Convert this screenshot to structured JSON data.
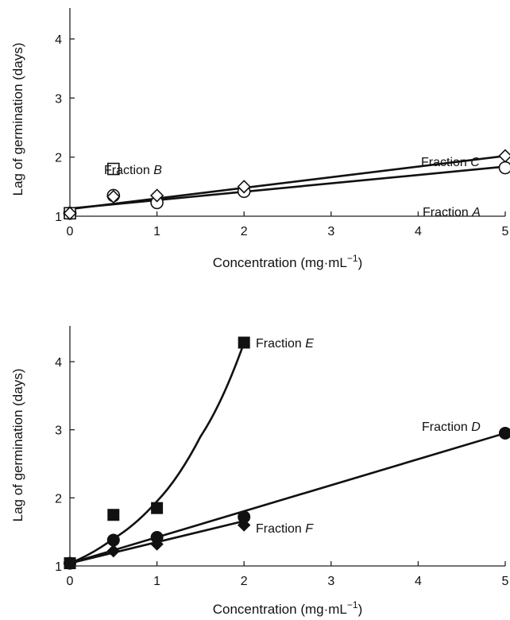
{
  "chart_data": [
    {
      "type": "scatter",
      "xlabel": "Concentration (mg·mL",
      "xlabel_sup": "−1",
      "xlabel_close": ")",
      "ylabel": "Lag of germination (days)",
      "xlim": [
        0,
        5
      ],
      "ylim": [
        1,
        4.5
      ],
      "xticks": [
        "0",
        "1",
        "2",
        "3",
        "4",
        "5"
      ],
      "yticks": [
        "1",
        "2",
        "3",
        "4"
      ],
      "x_positions": [
        0,
        0.5,
        1,
        2,
        5
      ],
      "grid": false,
      "series": [
        {
          "name": "Fraction A",
          "label": "Fraction ",
          "label_letter": "A",
          "marker": "open-circle",
          "points": [
            [
              0,
              1.05
            ],
            [
              0.5,
              1.35
            ],
            [
              1,
              1.23
            ],
            [
              2,
              1.42
            ],
            [
              5,
              1.82
            ]
          ],
          "fit": [
            [
              0,
              1.13
            ],
            [
              5,
              1.84
            ]
          ]
        },
        {
          "name": "Fraction B",
          "label": "Fraction ",
          "label_letter": "B",
          "marker": "open-square",
          "points": [
            [
              0,
              1.05
            ],
            [
              0.5,
              1.8
            ]
          ]
        },
        {
          "name": "Fraction C",
          "label": "Fraction ",
          "label_letter": "C",
          "marker": "open-diamond",
          "points": [
            [
              0,
              1.05
            ],
            [
              0.5,
              1.33
            ],
            [
              1,
              1.35
            ],
            [
              2,
              1.5
            ],
            [
              5,
              2.02
            ]
          ],
          "fit": [
            [
              0,
              1.12
            ],
            [
              5,
              2.02
            ]
          ]
        }
      ]
    },
    {
      "type": "scatter",
      "xlabel": "Concentration (mg·mL",
      "xlabel_sup": "−1",
      "xlabel_close": ")",
      "ylabel": "Lag of germination (days)",
      "xlim": [
        0,
        5
      ],
      "ylim": [
        1,
        4.5
      ],
      "xticks": [
        "0",
        "1",
        "2",
        "3",
        "4",
        "5"
      ],
      "yticks": [
        "1",
        "2",
        "3",
        "4"
      ],
      "x_positions": [
        0,
        0.5,
        1,
        2,
        5
      ],
      "grid": false,
      "series": [
        {
          "name": "Fraction D",
          "label": "Fraction ",
          "label_letter": "D",
          "marker": "filled-circle",
          "points": [
            [
              0,
              1.04
            ],
            [
              0.5,
              1.38
            ],
            [
              1,
              1.42
            ],
            [
              2,
              1.72
            ],
            [
              5,
              2.95
            ]
          ],
          "fit": [
            [
              0,
              1.04
            ],
            [
              5,
              2.95
            ]
          ]
        },
        {
          "name": "Fraction E",
          "label": "Fraction ",
          "label_letter": "E",
          "marker": "filled-square",
          "points": [
            [
              0,
              1.04
            ],
            [
              0.5,
              1.75
            ],
            [
              1,
              1.85
            ],
            [
              2,
              4.28
            ]
          ],
          "fit_curve": [
            [
              0,
              1.04
            ],
            [
              0.5,
              1.4
            ],
            [
              1,
              1.95
            ],
            [
              1.5,
              2.9
            ],
            [
              2,
              4.28
            ]
          ]
        },
        {
          "name": "Fraction F",
          "label": "Fraction ",
          "label_letter": "F",
          "marker": "filled-diamond",
          "points": [
            [
              0,
              1.04
            ],
            [
              0.5,
              1.22
            ],
            [
              1,
              1.32
            ],
            [
              2,
              1.6
            ]
          ],
          "fit": [
            [
              0,
              1.04
            ],
            [
              2,
              1.66
            ]
          ]
        }
      ]
    }
  ]
}
